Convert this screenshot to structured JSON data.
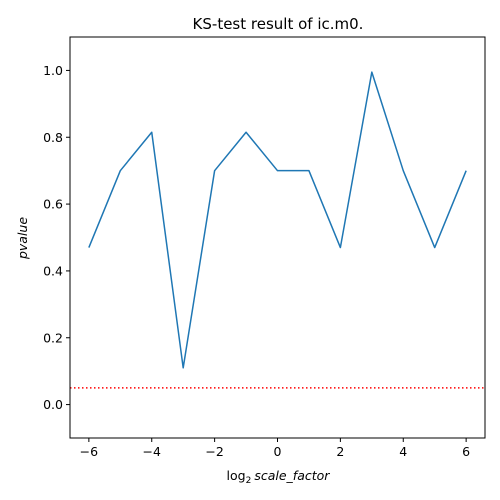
{
  "chart_data": {
    "type": "line",
    "title": "KS-test result of ic.m0.",
    "xlabel_prefix": "log",
    "xlabel_subscript": "2",
    "xlabel_main": "scale_factor",
    "ylabel": "pvalue",
    "xlim": [
      -6.6,
      6.6
    ],
    "ylim": [
      -0.1,
      1.1
    ],
    "x_ticks": [
      -6,
      -4,
      -2,
      0,
      2,
      4,
      6
    ],
    "y_ticks": [
      0.0,
      0.2,
      0.4,
      0.6,
      0.8,
      1.0
    ],
    "x_tick_labels": [
      "−6",
      "−4",
      "−2",
      "0",
      "2",
      "4",
      "6"
    ],
    "y_tick_labels": [
      "0.0",
      "0.2",
      "0.4",
      "0.6",
      "0.8",
      "1.0"
    ],
    "series": [
      {
        "x": [
          -6,
          -5,
          -4,
          -3,
          -2,
          -1,
          0,
          1,
          2,
          3,
          4,
          5,
          6
        ],
        "y": [
          0.47,
          0.7,
          0.815,
          0.11,
          0.7,
          0.815,
          0.7,
          0.7,
          0.47,
          0.995,
          0.7,
          0.47,
          0.7
        ],
        "color": "#1f77b4"
      }
    ],
    "reference_line": {
      "y": 0.05,
      "color": "#ff0000",
      "style": "dotted"
    },
    "grid": false,
    "legend": "none"
  }
}
